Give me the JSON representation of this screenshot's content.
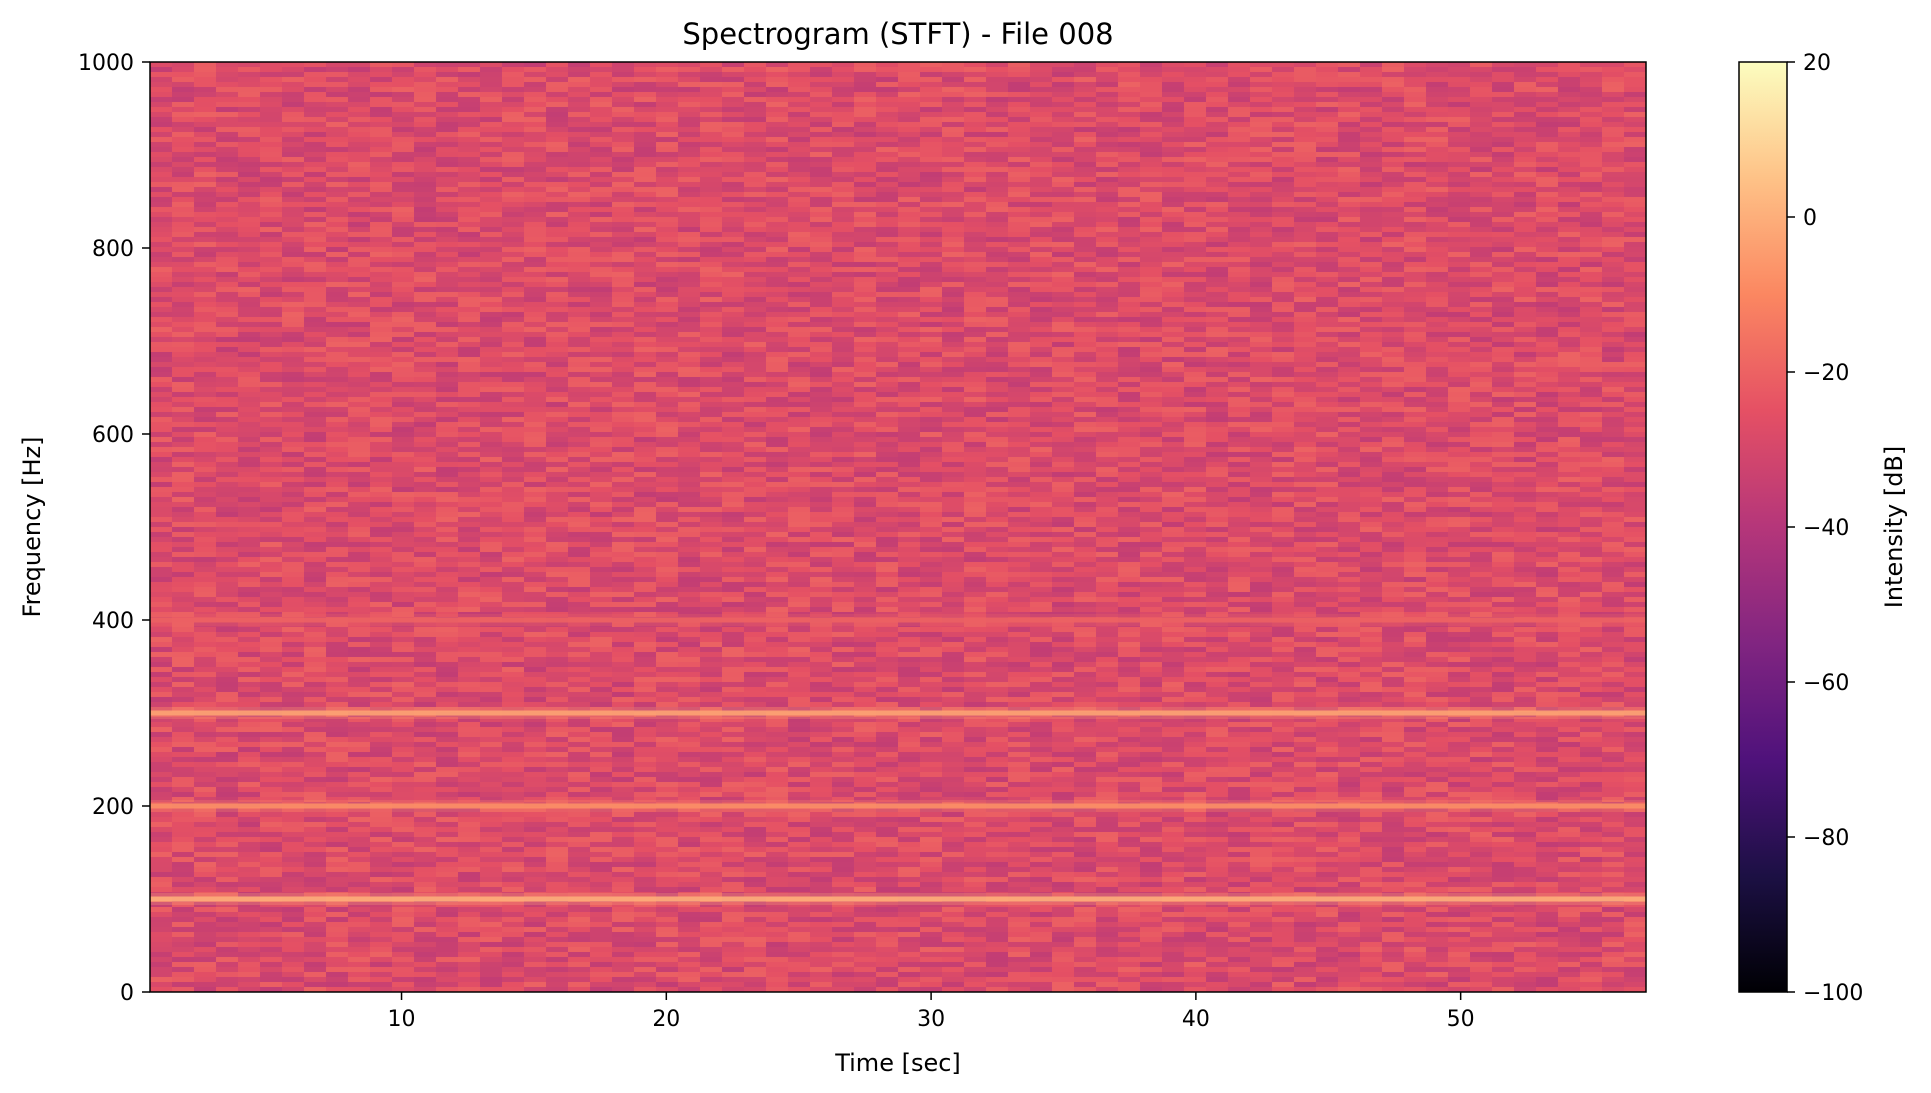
{
  "chart_data": {
    "type": "heatmap",
    "title": "Spectrogram (STFT) - File 008",
    "xlabel": "Time [sec]",
    "ylabel": "Frequency [Hz]",
    "xlim": [
      0.5,
      57
    ],
    "ylim": [
      0,
      1000
    ],
    "x_ticks": [
      10,
      20,
      30,
      40,
      50
    ],
    "y_ticks": [
      0,
      200,
      400,
      600,
      800,
      1000
    ],
    "colormap": "magma",
    "background_level_db": -28,
    "harmonic_lines": [
      {
        "frequency_hz": 100,
        "intensity_db": 0
      },
      {
        "frequency_hz": 200,
        "intensity_db": -8
      },
      {
        "frequency_hz": 300,
        "intensity_db": -3
      },
      {
        "frequency_hz": 400,
        "intensity_db": -20
      }
    ],
    "colorbar": {
      "label": "Intensity [dB]",
      "range": [
        -100,
        20
      ],
      "ticks": [
        20,
        0,
        -20,
        -40,
        -60,
        -80,
        -100
      ],
      "tick_labels": [
        "20",
        "0",
        "−20",
        "−40",
        "−60",
        "−80",
        "−100"
      ]
    }
  }
}
